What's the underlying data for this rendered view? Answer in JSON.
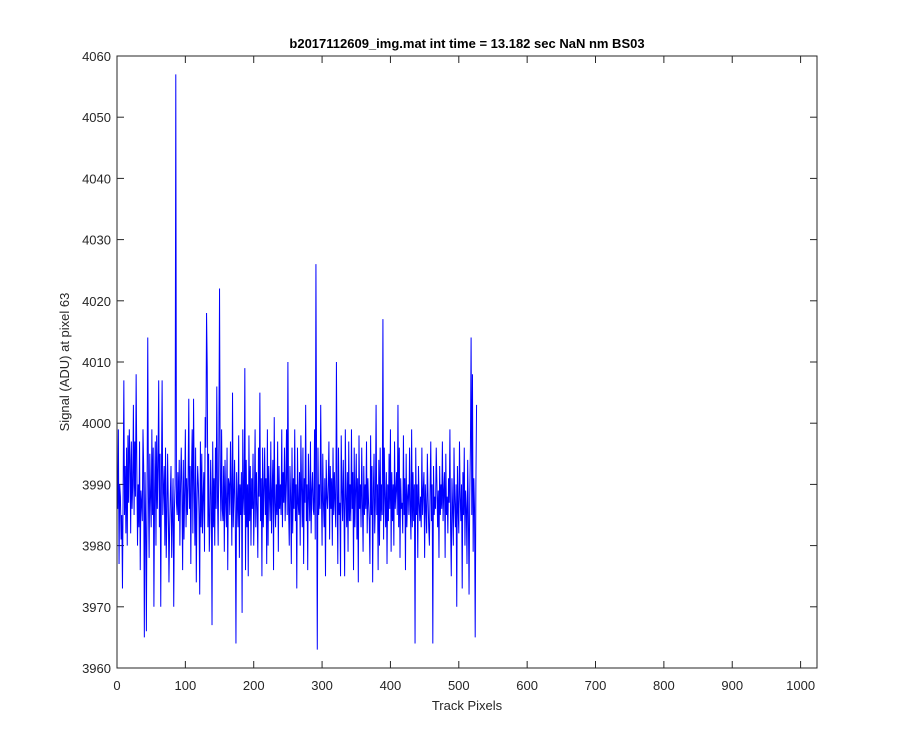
{
  "chart_data": {
    "type": "line",
    "title": "b2017112609_img.mat int time = 13.182 sec  NaN nm BS03",
    "xlabel": "Track Pixels",
    "ylabel": "Signal (ADU) at pixel 63",
    "xlim": [
      0,
      1024
    ],
    "ylim": [
      3960,
      4060
    ],
    "xticks": [
      "0",
      "100",
      "200",
      "300",
      "400",
      "500",
      "600",
      "700",
      "800",
      "900",
      "1000"
    ],
    "yticks": [
      "3960",
      "3970",
      "3980",
      "3990",
      "4000",
      "4010",
      "4020",
      "4030",
      "4040",
      "4050",
      "4060"
    ],
    "grid": false,
    "line_color": "#0000ff",
    "series": [
      {
        "x_start": 1,
        "x_step": 1,
        "values": [
          3986,
          3999,
          3977,
          3990,
          3988,
          3981,
          3985,
          3973,
          3989,
          4007,
          3985,
          3993,
          3982,
          3996,
          3980,
          3998,
          3987,
          3999,
          3994,
          3982,
          3997,
          3986,
          3990,
          4003,
          3985,
          3997,
          3988,
          4008,
          3993,
          3980,
          3990,
          3983,
          3997,
          3976,
          3989,
          3987,
          3984,
          3999,
          3993,
          3965,
          3992,
          3983,
          3966,
          3990,
          4014,
          3988,
          3978,
          3995,
          3988,
          3983,
          3999,
          3985,
          3996,
          3970,
          3989,
          3997,
          3980,
          3998,
          3986,
          3993,
          4007,
          3983,
          3995,
          3970,
          3991,
          4007,
          3985,
          3989,
          3993,
          3980,
          3996,
          3978,
          3985,
          3995,
          3987,
          3974,
          3983,
          3988,
          3993,
          3978,
          3985,
          3991,
          3970,
          3986,
          3990,
          4057,
          3987,
          3985,
          3992,
          3984,
          3994,
          3980,
          3990,
          3996,
          3988,
          3976,
          3994,
          3981,
          3989,
          3999,
          3983,
          3991,
          3985,
          3990,
          4004,
          3986,
          3993,
          3977,
          3992,
          3999,
          3982,
          4004,
          3989,
          3980,
          3996,
          3974,
          3987,
          3993,
          3990,
          3985,
          3972,
          3997,
          3983,
          3995,
          3982,
          3988,
          3992,
          3979,
          4001,
          3996,
          4018,
          4009,
          3983,
          3995,
          3979,
          3984,
          3994,
          3988,
          3967,
          3997,
          3983,
          3991,
          3980,
          3996,
          3986,
          4006,
          3988,
          3980,
          3997,
          4022,
          3991,
          3984,
          3999,
          3986,
          3984,
          3993,
          3979,
          3994,
          3987,
          3983,
          3996,
          3976,
          3991,
          3990,
          3985,
          3997,
          3989,
          3980,
          4005,
          3983,
          3988,
          3994,
          3985,
          3964,
          3992,
          3987,
          3983,
          3998,
          3978,
          3990,
          3985,
          3992,
          3969,
          3999,
          3988,
          3985,
          4009,
          3976,
          3994,
          3983,
          3990,
          3975,
          3998,
          3984,
          3993,
          3980,
          3991,
          3986,
          3995,
          3980,
          3987,
          3999,
          3983,
          3992,
          3986,
          3978,
          3996,
          3988,
          4005,
          3984,
          3991,
          3975,
          3996,
          3983,
          3989,
          3996,
          3985,
          3991,
          3977,
          3999,
          3980,
          3993,
          3988,
          3984,
          3997,
          3982,
          3989,
          3994,
          3976,
          4001,
          3987,
          3983,
          3990,
          3985,
          3997,
          3979,
          3993,
          3986,
          3990,
          3985,
          3999,
          3983,
          3992,
          3987,
          3996,
          3984,
          3990,
          3999,
          3985,
          4010,
          3986,
          3980,
          3993,
          3988,
          3977,
          3996,
          3982,
          3991,
          3986,
          3999,
          3984,
          3990,
          3973,
          3996,
          3987,
          3985,
          3992,
          3980,
          3998,
          3989,
          3983,
          3996,
          3977,
          3991,
          3987,
          4003,
          3984,
          3990,
          3976,
          3995,
          3988,
          3984,
          3997,
          3982,
          3989,
          3992,
          3986,
          3985,
          3999,
          3981,
          4026,
          3992,
          3963,
          3996,
          3985,
          3990,
          3986,
          4003,
          3989,
          3980,
          3995,
          3987,
          3983,
          3991,
          3975,
          3994,
          3988,
          3986,
          3990,
          3997,
          3981,
          3993,
          3986,
          3991,
          3980,
          3996,
          3985,
          3992,
          3987,
          3983,
          4010,
          3989,
          3977,
          3996,
          3985,
          3987,
          3975,
          3998,
          3989,
          3984,
          3994,
          3986,
          3975,
          3999,
          3988,
          3983,
          3992,
          3979,
          3997,
          3984,
          3990,
          3984,
          3999,
          3986,
          3992,
          3976,
          3996,
          3983,
          3989,
          3995,
          3981,
          3991,
          3974,
          3998,
          3986,
          3990,
          3983,
          3996,
          3987,
          3979,
          3993,
          3985,
          3990,
          3986,
          3997,
          3982,
          3991,
          3987,
          3984,
          3977,
          3998,
          3985,
          3993,
          3974,
          3989,
          3995,
          3982,
          3987,
          4003,
          3985,
          3990,
          3976,
          3994,
          3980,
          3996,
          3984,
          3990,
          3985,
          4017,
          3981,
          3996,
          3988,
          3983,
          3992,
          3977,
          3990,
          3984,
          3995,
          3986,
          3999,
          3979,
          3992,
          3984,
          3990,
          3980,
          3997,
          3986,
          3989,
          3992,
          3985,
          4003,
          3983,
          3996,
          3978,
          3991,
          3986,
          3987,
          3982,
          3998,
          3985,
          3991,
          3976,
          3995,
          3983,
          3988,
          3990,
          3985,
          3996,
          3986,
          3981,
          3999,
          3983,
          3992,
          3984,
          3990,
          3964,
          3996,
          3985,
          3990,
          3978,
          3993,
          3987,
          3984,
          3988,
          3983,
          3996,
          3985,
          3989,
          3992,
          3978,
          3990,
          3986,
          3982,
          3995,
          3988,
          3983,
          3980,
          3989,
          3997,
          3984,
          3990,
          3964,
          3993,
          3985,
          3988,
          3986,
          3996,
          3990,
          3983,
          3989,
          3978,
          3993,
          3985,
          3990,
          3986,
          3997,
          3984,
          3989,
          3992,
          3978,
          3995,
          3985,
          3988,
          3982,
          3991,
          3987,
          3999,
          3983,
          3975,
          3991,
          3986,
          3980,
          3996,
          3987,
          3983,
          3990,
          3970,
          3993,
          3986,
          3982,
          3997,
          3988,
          3984,
          3990,
          3973,
          3992,
          3985,
          3996,
          3980,
          3989,
          3986,
          3977,
          3994,
          3985,
          3972,
          3988,
          3996,
          4014,
          3985,
          4008,
          3979,
          3991,
          3986,
          3965,
          3990,
          4003
        ]
      }
    ]
  }
}
